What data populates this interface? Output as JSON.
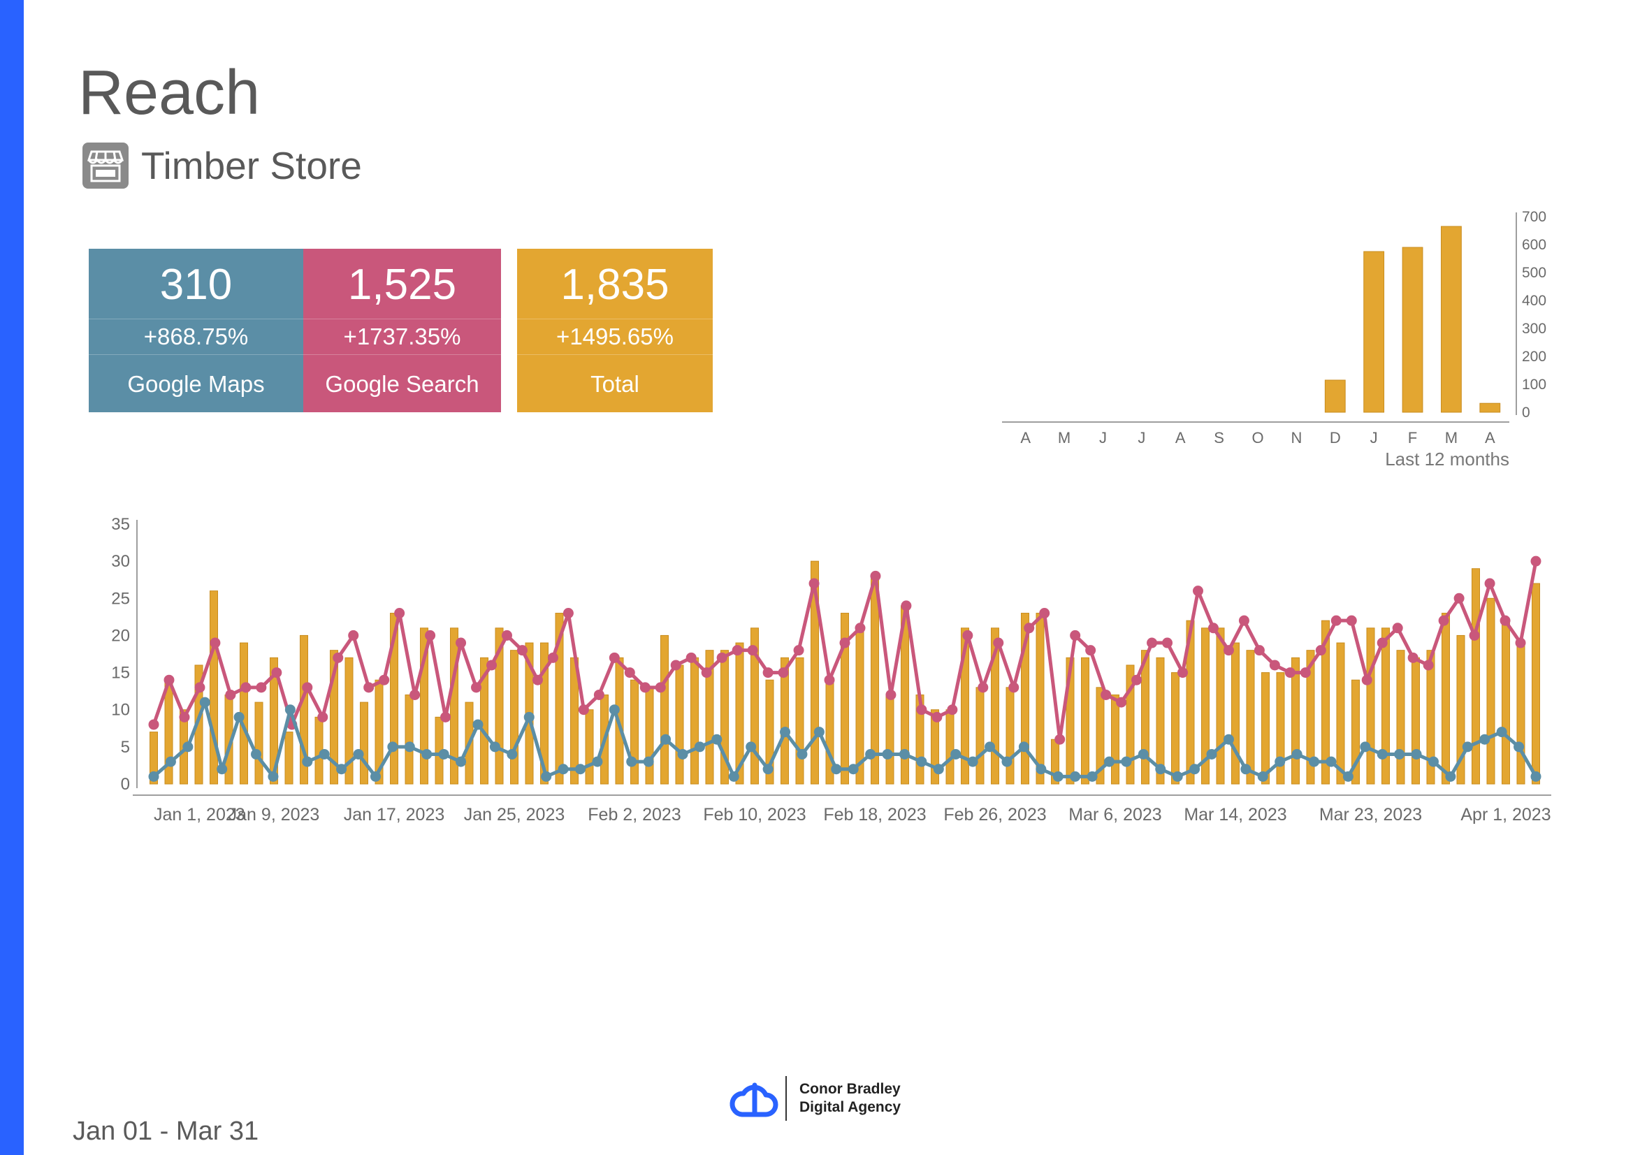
{
  "header": {
    "title": "Reach",
    "subtitle": "Timber Store",
    "icon": "storefront-icon"
  },
  "kpis": {
    "maps": {
      "value": "310",
      "change": "+868.75%",
      "label": "Google Maps",
      "color": "#5b8ea6"
    },
    "search": {
      "value": "1,525",
      "change": "+1737.35%",
      "label": "Google Search",
      "color": "#c9577b"
    },
    "total": {
      "value": "1,835",
      "change": "+1495.65%",
      "label": "Total",
      "color": "#e3a631"
    }
  },
  "chart_data": [
    {
      "type": "bar",
      "caption": "Last 12 months",
      "categories": [
        "A",
        "M",
        "J",
        "J",
        "A",
        "S",
        "O",
        "N",
        "D",
        "J",
        "F",
        "M",
        "A"
      ],
      "values": [
        0,
        0,
        0,
        0,
        0,
        0,
        0,
        0,
        115,
        575,
        590,
        665,
        32
      ],
      "ylim": [
        0,
        700
      ],
      "yticks": [
        0,
        100,
        200,
        300,
        400,
        500,
        600,
        700
      ],
      "axis_side": "right",
      "color": "#e3a631"
    },
    {
      "type": "bar+line",
      "x_start": "Jan 1, 2023",
      "x_end": "Apr 1, 2023",
      "xtick_labels": [
        "Jan 1, 2023",
        "Jan 9, 2023",
        "Jan 17, 2023",
        "Jan 25, 2023",
        "Feb 2, 2023",
        "Feb 10, 2023",
        "Feb 18, 2023",
        "Feb 26, 2023",
        "Mar 6, 2023",
        "Mar 14, 2023",
        "Mar 23, 2023",
        "Apr 1, 2023"
      ],
      "xtick_dates": [
        "2023-01-01",
        "2023-01-09",
        "2023-01-17",
        "2023-01-25",
        "2023-02-02",
        "2023-02-10",
        "2023-02-18",
        "2023-02-26",
        "2023-03-06",
        "2023-03-14",
        "2023-03-23",
        "2023-04-01"
      ],
      "ylim": [
        0,
        35
      ],
      "yticks": [
        0,
        5,
        10,
        15,
        20,
        25,
        30,
        35
      ],
      "series": [
        {
          "color": "#e3a631",
          "kind": "bar",
          "values": [
            7,
            14,
            10,
            16,
            26,
            12,
            19,
            11,
            17,
            7,
            20,
            9,
            18,
            17,
            11,
            14,
            23,
            12,
            21,
            9,
            21,
            11,
            17,
            21,
            18,
            19,
            19,
            23,
            17,
            10,
            12,
            17,
            14,
            13,
            20,
            16,
            17,
            18,
            18,
            19,
            21,
            14,
            17,
            17,
            30,
            14,
            23,
            21,
            28,
            12,
            24,
            12,
            10,
            10,
            21,
            13,
            21,
            13,
            23,
            23,
            6,
            17,
            17,
            13,
            12,
            16,
            18,
            17,
            15,
            22,
            21,
            21,
            19,
            18,
            15,
            15,
            17,
            18,
            22,
            19,
            14,
            21,
            21,
            18,
            17,
            18,
            23,
            20,
            29,
            25,
            22,
            19,
            27
          ]
        },
        {
          "color": "#c9577b",
          "kind": "line",
          "values": [
            8,
            14,
            9,
            13,
            19,
            12,
            13,
            13,
            15,
            8,
            13,
            9,
            17,
            20,
            13,
            14,
            23,
            12,
            20,
            9,
            19,
            13,
            16,
            20,
            18,
            14,
            17,
            23,
            10,
            12,
            17,
            15,
            13,
            13,
            16,
            17,
            15,
            17,
            18,
            18,
            15,
            15,
            18,
            27,
            14,
            19,
            21,
            28,
            12,
            24,
            10,
            9,
            10,
            20,
            13,
            19,
            13,
            21,
            23,
            6,
            20,
            18,
            12,
            11,
            14,
            19,
            19,
            15,
            26,
            21,
            18,
            22,
            18,
            16,
            15,
            15,
            18,
            22,
            22,
            14,
            19,
            21,
            17,
            16,
            22,
            25,
            20,
            27,
            22,
            19,
            30
          ]
        },
        {
          "color": "#5b8ea6",
          "kind": "line",
          "values": [
            1,
            3,
            5,
            11,
            2,
            9,
            4,
            1,
            10,
            3,
            4,
            2,
            4,
            1,
            5,
            5,
            4,
            4,
            3,
            8,
            5,
            4,
            9,
            1,
            2,
            2,
            3,
            10,
            3,
            3,
            6,
            4,
            5,
            6,
            1,
            5,
            2,
            7,
            4,
            7,
            2,
            2,
            4,
            4,
            4,
            3,
            2,
            4,
            3,
            5,
            3,
            5,
            2,
            1,
            1,
            1,
            3,
            3,
            4,
            2,
            1,
            2,
            4,
            6,
            2,
            1,
            3,
            4,
            3,
            3,
            1,
            5,
            4,
            4,
            4,
            3,
            1,
            5,
            6,
            7,
            5,
            1
          ]
        }
      ]
    }
  ],
  "footer": {
    "date_range": "Jan 01 - Mar 31",
    "brand_line1": "Conor Bradley",
    "brand_line2": "Digital Agency",
    "brand_icon": "cloud-logo-icon",
    "accent": "#2962ff"
  }
}
